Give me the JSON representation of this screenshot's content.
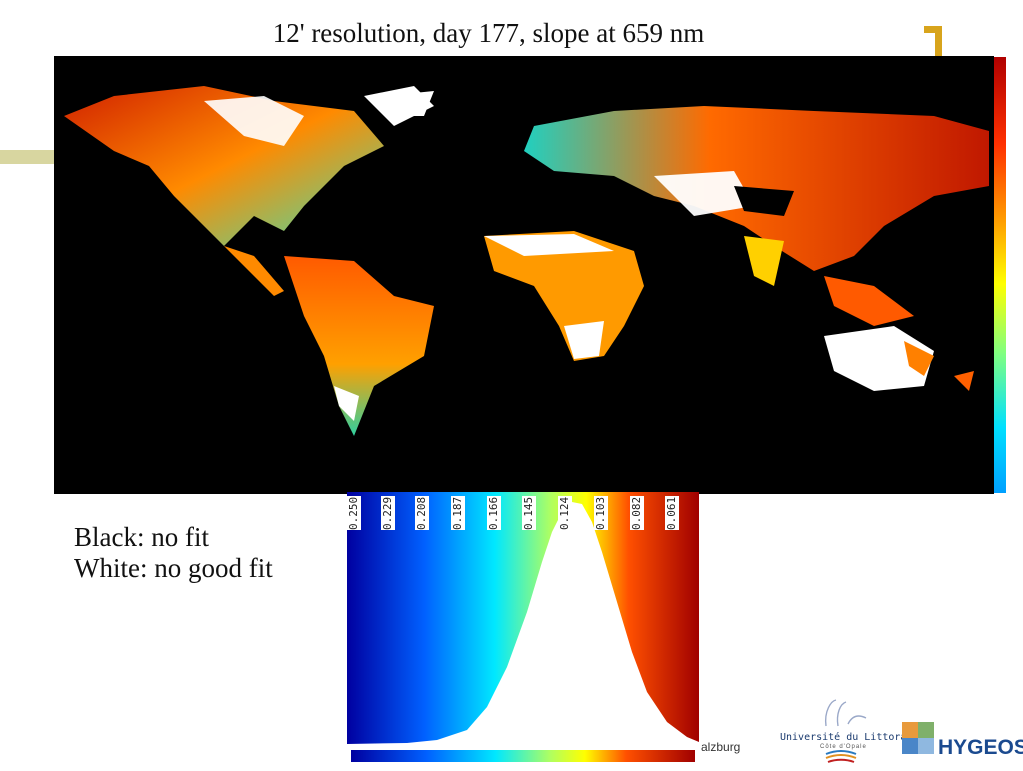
{
  "slide": {
    "title": "12' resolution, day 177, slope at 659 nm"
  },
  "legend": {
    "black_label": "Black: no fit",
    "white_label": "White: no good fit"
  },
  "histogram": {
    "tick_labels": [
      "0.250",
      "0.229",
      "0.208",
      "0.187",
      "0.166",
      "0.145",
      "0.124",
      "0.103",
      "0.082",
      "0.061"
    ]
  },
  "footer": {
    "fragment": "alzburg"
  },
  "logos": {
    "ulco": "Université du Littoral",
    "ulco_sub": "Côte d'Opale",
    "hygeos": "HYGEOS"
  },
  "colors": {
    "no_fit": "#000000",
    "no_good_fit": "#ffffff",
    "accent_gold": "#d8a41c",
    "accent_olive": "#d8d6a0",
    "hygeos_blue": "#1b4a8f"
  }
}
